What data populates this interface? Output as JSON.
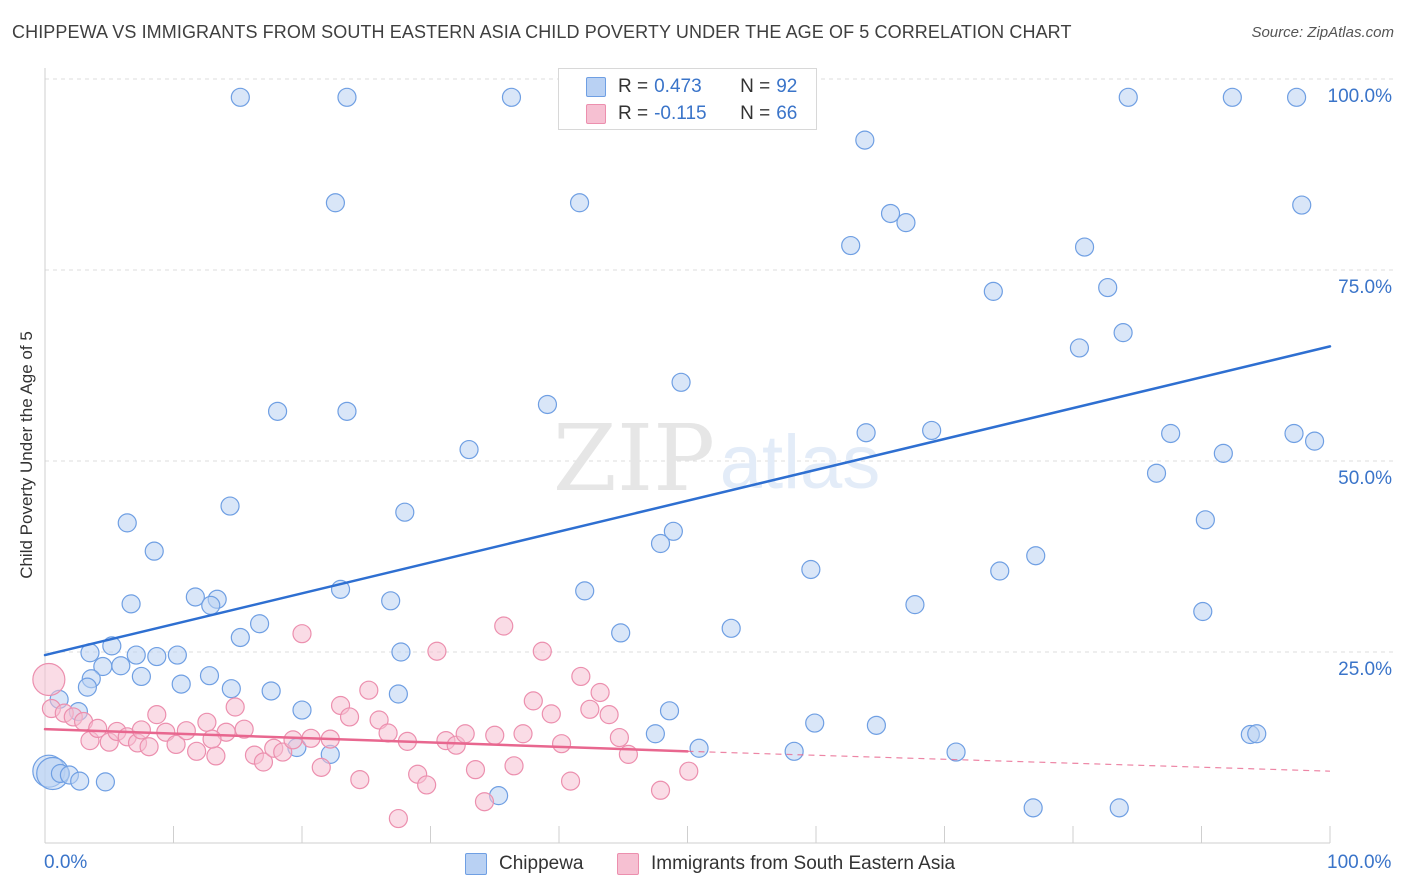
{
  "title": "CHIPPEWA VS IMMIGRANTS FROM SOUTH EASTERN ASIA CHILD POVERTY UNDER THE AGE OF 5 CORRELATION CHART",
  "source": "Source: ZipAtlas.com",
  "watermark": {
    "zip": "ZIP",
    "atlas": "atlas"
  },
  "legend": {
    "r_label": "R =",
    "n_label": "N =",
    "rows": [
      {
        "r": "0.473",
        "n": "92"
      },
      {
        "r": "-0.115",
        "n": "66"
      }
    ]
  },
  "bottom_legend": [
    "Chippewa",
    "Immigrants from South Eastern Asia"
  ],
  "axis": {
    "ylabel": "Child Poverty Under the Age of 5",
    "x_min_label": "0.0%",
    "x_max_label": "100.0%",
    "y_ticks": [
      "100.0%",
      "75.0%",
      "50.0%",
      "25.0%"
    ]
  },
  "chart_data": {
    "type": "scatter",
    "xlabel": "",
    "ylabel": "Child Poverty Under the Age of 5",
    "xlim": [
      0,
      100
    ],
    "ylim": [
      0,
      100
    ],
    "y_tick_values": [
      100,
      75,
      50,
      25
    ],
    "grid": true,
    "legend_position": "top-center",
    "series": [
      {
        "name": "Chippewa",
        "color": "#6f9fe3",
        "fill": "#b9d1f3",
        "trend": {
          "x": [
            0,
            100
          ],
          "y": [
            24.6,
            65.0
          ],
          "style": "solid",
          "color": "#2e6fd1"
        },
        "points": [
          [
            15.2,
            97.6
          ],
          [
            23.5,
            97.6
          ],
          [
            36.3,
            97.6
          ],
          [
            84.3,
            97.6
          ],
          [
            92.4,
            97.6
          ],
          [
            97.4,
            97.6
          ],
          [
            63.8,
            92.0
          ],
          [
            22.6,
            83.8
          ],
          [
            41.6,
            83.8
          ],
          [
            97.8,
            83.5
          ],
          [
            65.8,
            82.4
          ],
          [
            67.0,
            81.2
          ],
          [
            62.7,
            78.2
          ],
          [
            80.9,
            78.0
          ],
          [
            82.7,
            72.7
          ],
          [
            73.8,
            72.2
          ],
          [
            83.9,
            66.8
          ],
          [
            80.5,
            64.8
          ],
          [
            49.5,
            60.3
          ],
          [
            39.1,
            57.4
          ],
          [
            18.1,
            56.5
          ],
          [
            23.5,
            56.5
          ],
          [
            63.9,
            53.7
          ],
          [
            69.0,
            54.0
          ],
          [
            87.6,
            53.6
          ],
          [
            97.2,
            53.6
          ],
          [
            98.8,
            52.6
          ],
          [
            33.0,
            51.5
          ],
          [
            91.7,
            51.0
          ],
          [
            86.5,
            48.4
          ],
          [
            14.4,
            44.1
          ],
          [
            28.0,
            43.3
          ],
          [
            90.3,
            42.3
          ],
          [
            6.4,
            41.9
          ],
          [
            48.9,
            40.8
          ],
          [
            47.9,
            39.2
          ],
          [
            8.5,
            38.2
          ],
          [
            59.6,
            35.8
          ],
          [
            74.3,
            35.6
          ],
          [
            77.1,
            37.6
          ],
          [
            23.0,
            33.2
          ],
          [
            42.0,
            33.0
          ],
          [
            11.7,
            32.2
          ],
          [
            13.4,
            31.9
          ],
          [
            26.9,
            31.7
          ],
          [
            6.7,
            31.3
          ],
          [
            12.9,
            31.1
          ],
          [
            67.7,
            31.2
          ],
          [
            53.4,
            28.1
          ],
          [
            90.1,
            30.3
          ],
          [
            16.7,
            28.7
          ],
          [
            44.8,
            27.5
          ],
          [
            5.2,
            25.8
          ],
          [
            27.7,
            25.0
          ],
          [
            3.5,
            24.9
          ],
          [
            7.1,
            24.6
          ],
          [
            10.3,
            24.6
          ],
          [
            15.2,
            26.9
          ],
          [
            8.7,
            24.4
          ],
          [
            4.5,
            23.1
          ],
          [
            5.9,
            23.2
          ],
          [
            7.5,
            21.8
          ],
          [
            3.6,
            21.5
          ],
          [
            3.3,
            20.4
          ],
          [
            14.5,
            20.2
          ],
          [
            12.8,
            21.9
          ],
          [
            10.6,
            20.8
          ],
          [
            17.6,
            19.9
          ],
          [
            1.1,
            18.8
          ],
          [
            2.6,
            17.2
          ],
          [
            27.5,
            19.5
          ],
          [
            20.0,
            17.4
          ],
          [
            48.6,
            17.3
          ],
          [
            59.9,
            15.7
          ],
          [
            64.7,
            15.4
          ],
          [
            47.5,
            14.3
          ],
          [
            93.8,
            14.2
          ],
          [
            94.3,
            14.3
          ],
          [
            19.6,
            12.5
          ],
          [
            22.2,
            11.6
          ],
          [
            50.9,
            12.4
          ],
          [
            58.3,
            12.0
          ],
          [
            70.9,
            11.9
          ],
          [
            0.3,
            9.4
          ],
          [
            0.6,
            9.1
          ],
          [
            1.2,
            9.1
          ],
          [
            1.9,
            8.9
          ],
          [
            2.7,
            8.1
          ],
          [
            4.7,
            8.0
          ],
          [
            35.3,
            6.2
          ],
          [
            76.9,
            4.6
          ],
          [
            83.6,
            4.6
          ]
        ]
      },
      {
        "name": "Immigrants from South Eastern Asia",
        "color": "#ec8fae",
        "fill": "#f6c0d2",
        "trend": {
          "x": [
            0,
            50
          ],
          "y": [
            14.9,
            12.0
          ],
          "style": "solid",
          "color": "#e8678f",
          "extrapolated": {
            "x": [
              50,
              100
            ],
            "y": [
              12.0,
              9.4
            ],
            "style": "dashed"
          }
        },
        "points": [
          [
            0.3,
            21.4
          ],
          [
            0.5,
            17.6
          ],
          [
            1.5,
            17.0
          ],
          [
            2.2,
            16.5
          ],
          [
            3.0,
            15.9
          ],
          [
            3.5,
            13.4
          ],
          [
            4.1,
            15.0
          ],
          [
            5.0,
            13.2
          ],
          [
            5.6,
            14.6
          ],
          [
            6.4,
            13.9
          ],
          [
            7.2,
            13.1
          ],
          [
            8.1,
            12.6
          ],
          [
            8.7,
            16.8
          ],
          [
            9.4,
            14.5
          ],
          [
            10.2,
            12.9
          ],
          [
            11.0,
            14.7
          ],
          [
            11.8,
            12.0
          ],
          [
            12.6,
            15.8
          ],
          [
            13.3,
            11.4
          ],
          [
            14.1,
            14.5
          ],
          [
            14.8,
            17.8
          ],
          [
            15.5,
            14.9
          ],
          [
            16.3,
            11.5
          ],
          [
            17.0,
            10.6
          ],
          [
            17.8,
            12.4
          ],
          [
            18.5,
            11.9
          ],
          [
            19.3,
            13.5
          ],
          [
            20.0,
            27.4
          ],
          [
            20.7,
            13.7
          ],
          [
            21.5,
            9.9
          ],
          [
            22.2,
            13.6
          ],
          [
            23.0,
            18.0
          ],
          [
            23.7,
            16.5
          ],
          [
            24.5,
            8.3
          ],
          [
            25.2,
            20.0
          ],
          [
            26.0,
            16.1
          ],
          [
            26.7,
            14.4
          ],
          [
            27.5,
            3.2
          ],
          [
            28.2,
            13.3
          ],
          [
            29.0,
            9.0
          ],
          [
            29.7,
            7.6
          ],
          [
            30.5,
            25.1
          ],
          [
            31.2,
            13.4
          ],
          [
            32.0,
            12.8
          ],
          [
            32.7,
            14.3
          ],
          [
            33.5,
            9.6
          ],
          [
            34.2,
            5.4
          ],
          [
            35.0,
            14.1
          ],
          [
            35.7,
            28.4
          ],
          [
            36.5,
            10.1
          ],
          [
            37.2,
            14.3
          ],
          [
            38.0,
            18.6
          ],
          [
            38.7,
            25.1
          ],
          [
            39.4,
            16.9
          ],
          [
            40.2,
            13.0
          ],
          [
            40.9,
            8.1
          ],
          [
            41.7,
            21.8
          ],
          [
            42.4,
            17.5
          ],
          [
            43.2,
            19.7
          ],
          [
            43.9,
            16.8
          ],
          [
            44.7,
            13.8
          ],
          [
            45.4,
            11.6
          ],
          [
            47.9,
            6.9
          ],
          [
            50.1,
            9.4
          ],
          [
            13.0,
            13.6
          ],
          [
            7.5,
            14.8
          ]
        ]
      }
    ]
  }
}
